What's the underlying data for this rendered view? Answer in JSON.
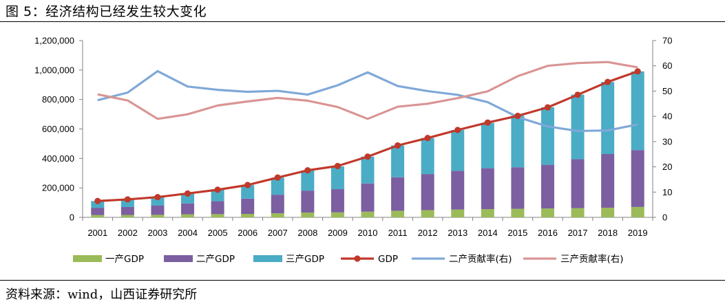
{
  "figure": {
    "title": "图 5：经济结构已经发生较大变化",
    "source": "资料来源：wind，山西证券研究所"
  },
  "colors": {
    "primary": "#9BBB59",
    "secondary": "#7B5FA0",
    "tertiary": "#4BACC6",
    "gdp": "#C0392B",
    "secondary_rate": "#7FA8D8",
    "tertiary_rate": "#D99594",
    "axis": "#808080"
  },
  "chart_data": {
    "type": "bar",
    "stacked": true,
    "x": [
      "2001",
      "2002",
      "2003",
      "2004",
      "2005",
      "2006",
      "2007",
      "2008",
      "2009",
      "2010",
      "2011",
      "2012",
      "2013",
      "2014",
      "2015",
      "2016",
      "2017",
      "2018",
      "2019"
    ],
    "series": [
      {
        "name": "一产GDP",
        "type": "bar",
        "axis": "left",
        "values": [
          15411,
          16117,
          16928,
          20768,
          21807,
          23317,
          27674,
          32464,
          33584,
          38430,
          44781,
          49085,
          53028,
          55626,
          57774,
          60139,
          62100,
          64745,
          70467
        ]
      },
      {
        "name": "二产GDP",
        "type": "bar",
        "axis": "left",
        "values": [
          49512,
          53897,
          62436,
          73904,
          87598,
          103720,
          125831,
          149003,
          157639,
          191630,
          227039,
          244643,
          261956,
          277572,
          282040,
          296548,
          332743,
          364835,
          386165
        ]
      },
      {
        "name": "三产GDP",
        "type": "bar",
        "axis": "left",
        "values": [
          45700,
          49900,
          56004,
          64561,
          77428,
          91760,
          115810,
          136805,
          154748,
          182038,
          216099,
          244856,
          277959,
          308059,
          349745,
          390828,
          438355,
          489701,
          534233
        ]
      },
      {
        "name": "GDP",
        "type": "line",
        "axis": "left",
        "values": [
          110863,
          121717,
          137422,
          161840,
          187319,
          219439,
          270092,
          319245,
          348518,
          412119,
          487940,
          538580,
          592963,
          643563,
          688858,
          746395,
          832036,
          919281,
          990865
        ]
      },
      {
        "name": "二产贡献率(右)",
        "type": "line",
        "axis": "right",
        "values": [
          46.4,
          49.4,
          57.9,
          51.8,
          50.5,
          49.7,
          50.1,
          48.6,
          52.3,
          57.4,
          52.0,
          50.0,
          48.5,
          45.6,
          39.7,
          36.0,
          34.2,
          34.4,
          36.8
        ]
      },
      {
        "name": "三产贡献率(右)",
        "type": "line",
        "axis": "right",
        "values": [
          48.7,
          46.3,
          39.0,
          40.8,
          44.3,
          45.9,
          47.3,
          46.2,
          43.7,
          39.0,
          43.8,
          45.0,
          47.2,
          49.9,
          55.9,
          60.0,
          61.1,
          61.5,
          59.4
        ]
      }
    ],
    "y_left": {
      "min": 0,
      "max": 1200000,
      "step": 200000,
      "tick_labels": [
        "0",
        "200,000",
        "400,000",
        "600,000",
        "800,000",
        "1,000,000",
        "1,200,000"
      ]
    },
    "y_right": {
      "min": 0,
      "max": 70,
      "step": 10,
      "tick_labels": [
        "0",
        "10",
        "20",
        "30",
        "40",
        "50",
        "60",
        "70"
      ]
    },
    "grid": false,
    "legend_position": "bottom"
  }
}
